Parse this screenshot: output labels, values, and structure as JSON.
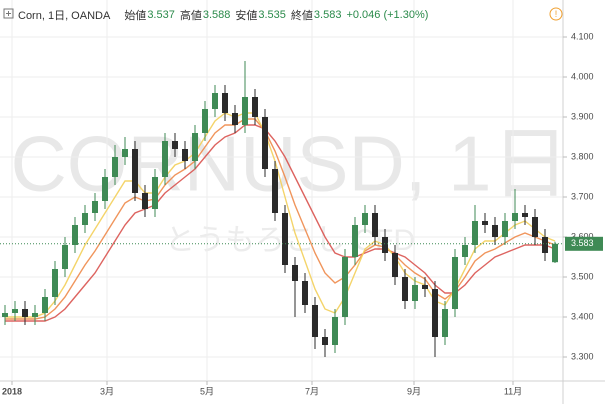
{
  "chart_data": {
    "type": "candlestick",
    "symbol": "Corn, 1日, OANDA",
    "header": [
      {
        "label": "始値",
        "value": "3.537"
      },
      {
        "label": "高値",
        "value": "3.588"
      },
      {
        "label": "安値",
        "value": "3.535"
      },
      {
        "label": "終値",
        "value": "3.583"
      }
    ],
    "change": "+0.046 (+1.30%)",
    "watermark": "CORNUSD, 1日",
    "watermark_sub": "とうもろこし CFD",
    "ylim": [
      3.2425,
      4.13
    ],
    "yticks": [
      {
        "value": 3.3,
        "label": "3.300"
      },
      {
        "value": 3.4,
        "label": "3.400"
      },
      {
        "value": 3.5,
        "label": "3.500"
      },
      {
        "value": 3.6,
        "label": "3.600"
      },
      {
        "value": 3.7,
        "label": "3.700"
      },
      {
        "value": 3.8,
        "label": "3.800"
      },
      {
        "value": 3.9,
        "label": "3.900"
      },
      {
        "value": 4.0,
        "label": "4.000"
      },
      {
        "value": 4.1,
        "label": "4.100"
      }
    ],
    "xticks": [
      {
        "value": 0.7,
        "label": "2018"
      },
      {
        "value": 10.2,
        "label": "3月"
      },
      {
        "value": 20.2,
        "label": "5月"
      },
      {
        "value": 30.7,
        "label": "7月"
      },
      {
        "value": 40.9,
        "label": "9月"
      },
      {
        "value": 50.8,
        "label": "11月"
      }
    ],
    "grid": true,
    "up_color": "#3f8a55",
    "down_color": "#2b2b2b",
    "open": [
      3.4,
      3.41,
      3.42,
      3.4,
      3.41,
      3.45,
      3.52,
      3.58,
      3.63,
      3.66,
      3.69,
      3.75,
      3.8,
      3.82,
      3.71,
      3.67,
      3.75,
      3.84,
      3.82,
      3.79,
      3.86,
      3.92,
      3.96,
      3.91,
      3.88,
      3.95,
      3.9,
      3.77,
      3.66,
      3.53,
      3.49,
      3.43,
      3.35,
      3.33,
      3.4,
      3.55,
      3.63,
      3.66,
      3.6,
      3.56,
      3.5,
      3.44,
      3.48,
      3.47,
      3.35,
      3.42,
      3.55,
      3.58,
      3.64,
      3.63,
      3.6,
      3.64,
      3.66,
      3.65,
      3.6,
      3.537
    ],
    "high": [
      3.43,
      3.44,
      3.44,
      3.43,
      3.47,
      3.54,
      3.6,
      3.65,
      3.68,
      3.71,
      3.77,
      3.83,
      3.85,
      3.84,
      3.73,
      3.77,
      3.86,
      3.86,
      3.84,
      3.88,
      3.94,
      3.98,
      3.98,
      3.93,
      4.04,
      3.97,
      3.92,
      3.79,
      3.68,
      3.55,
      3.51,
      3.45,
      3.37,
      3.42,
      3.57,
      3.65,
      3.68,
      3.68,
      3.62,
      3.58,
      3.52,
      3.5,
      3.5,
      3.49,
      3.44,
      3.57,
      3.6,
      3.68,
      3.66,
      3.65,
      3.66,
      3.72,
      3.68,
      3.67,
      3.62,
      3.588
    ],
    "low": [
      3.38,
      3.39,
      3.38,
      3.38,
      3.39,
      3.43,
      3.5,
      3.56,
      3.61,
      3.64,
      3.67,
      3.73,
      3.78,
      3.69,
      3.65,
      3.65,
      3.73,
      3.8,
      3.77,
      3.77,
      3.84,
      3.9,
      3.89,
      3.86,
      3.86,
      3.88,
      3.75,
      3.64,
      3.51,
      3.4,
      3.41,
      3.32,
      3.3,
      3.31,
      3.38,
      3.53,
      3.61,
      3.58,
      3.54,
      3.48,
      3.42,
      3.42,
      3.45,
      3.3,
      3.33,
      3.4,
      3.53,
      3.56,
      3.61,
      3.58,
      3.58,
      3.62,
      3.63,
      3.58,
      3.54,
      3.535
    ],
    "close": [
      3.41,
      3.42,
      3.4,
      3.41,
      3.45,
      3.52,
      3.58,
      3.63,
      3.66,
      3.69,
      3.75,
      3.8,
      3.82,
      3.71,
      3.67,
      3.75,
      3.84,
      3.82,
      3.79,
      3.86,
      3.92,
      3.96,
      3.91,
      3.88,
      3.95,
      3.9,
      3.77,
      3.66,
      3.53,
      3.49,
      3.43,
      3.35,
      3.33,
      3.4,
      3.55,
      3.63,
      3.66,
      3.6,
      3.56,
      3.5,
      3.44,
      3.48,
      3.47,
      3.35,
      3.42,
      3.55,
      3.58,
      3.64,
      3.63,
      3.6,
      3.64,
      3.66,
      3.65,
      3.6,
      3.56,
      3.583
    ],
    "series": [
      {
        "color": "#d9534f",
        "values": [
          3.39,
          3.39,
          3.39,
          3.39,
          3.39,
          3.4,
          3.42,
          3.45,
          3.48,
          3.51,
          3.55,
          3.59,
          3.63,
          3.66,
          3.67,
          3.68,
          3.71,
          3.73,
          3.75,
          3.77,
          3.8,
          3.83,
          3.85,
          3.86,
          3.88,
          3.88,
          3.87,
          3.84,
          3.8,
          3.75,
          3.7,
          3.65,
          3.6,
          3.56,
          3.55,
          3.55,
          3.56,
          3.57,
          3.57,
          3.56,
          3.55,
          3.53,
          3.51,
          3.48,
          3.46,
          3.46,
          3.48,
          3.51,
          3.53,
          3.55,
          3.56,
          3.57,
          3.58,
          3.58,
          3.58,
          3.57
        ]
      },
      {
        "color": "#ee8a4a",
        "values": [
          3.395,
          3.395,
          3.395,
          3.395,
          3.4,
          3.42,
          3.45,
          3.49,
          3.53,
          3.565,
          3.605,
          3.645,
          3.685,
          3.7,
          3.69,
          3.695,
          3.73,
          3.755,
          3.77,
          3.79,
          3.825,
          3.86,
          3.88,
          3.88,
          3.895,
          3.895,
          3.865,
          3.815,
          3.75,
          3.68,
          3.62,
          3.56,
          3.51,
          3.485,
          3.5,
          3.53,
          3.565,
          3.58,
          3.575,
          3.555,
          3.53,
          3.51,
          3.495,
          3.46,
          3.445,
          3.465,
          3.5,
          3.54,
          3.56,
          3.57,
          3.585,
          3.6,
          3.61,
          3.6,
          3.59,
          3.58
        ]
      },
      {
        "color": "#f3cf5a",
        "values": [
          3.4,
          3.4,
          3.4,
          3.4,
          3.41,
          3.44,
          3.48,
          3.53,
          3.58,
          3.62,
          3.66,
          3.7,
          3.74,
          3.74,
          3.71,
          3.71,
          3.75,
          3.78,
          3.79,
          3.81,
          3.85,
          3.89,
          3.91,
          3.9,
          3.91,
          3.91,
          3.86,
          3.79,
          3.7,
          3.61,
          3.54,
          3.47,
          3.42,
          3.41,
          3.45,
          3.51,
          3.57,
          3.59,
          3.58,
          3.55,
          3.51,
          3.49,
          3.48,
          3.44,
          3.43,
          3.47,
          3.52,
          3.57,
          3.59,
          3.59,
          3.61,
          3.63,
          3.64,
          3.62,
          3.6,
          3.59
        ]
      }
    ]
  }
}
